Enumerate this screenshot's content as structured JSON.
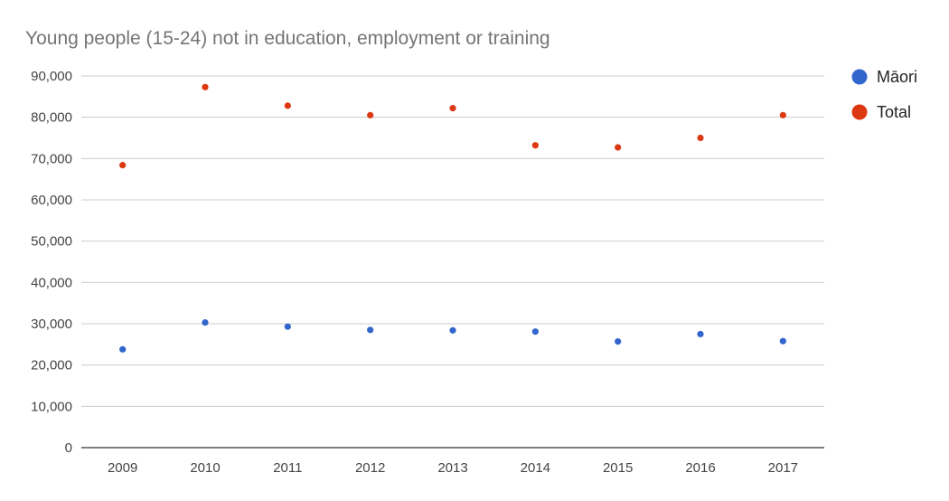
{
  "chart_data": {
    "type": "scatter",
    "title": "Young people (15-24) not in education, employment or training",
    "xlabel": "",
    "ylabel": "",
    "categories": [
      "2009",
      "2010",
      "2011",
      "2012",
      "2013",
      "2014",
      "2015",
      "2016",
      "2017"
    ],
    "ylim": [
      0,
      90000
    ],
    "yticks": [
      0,
      10000,
      20000,
      30000,
      40000,
      50000,
      60000,
      70000,
      80000,
      90000
    ],
    "ytick_labels": [
      "0",
      "10,000",
      "20,000",
      "30,000",
      "40,000",
      "50,000",
      "60,000",
      "70,000",
      "80,000",
      "90,000"
    ],
    "grid": true,
    "legend_position": "right",
    "series": [
      {
        "name": "Māori",
        "color": "#3366cc",
        "values": [
          23800,
          30300,
          29300,
          28500,
          28400,
          28100,
          25700,
          27500,
          25800
        ]
      },
      {
        "name": "Total",
        "color": "#dc3912",
        "values": [
          68400,
          87300,
          82800,
          80500,
          82200,
          73200,
          72700,
          75000,
          80500
        ]
      }
    ]
  }
}
